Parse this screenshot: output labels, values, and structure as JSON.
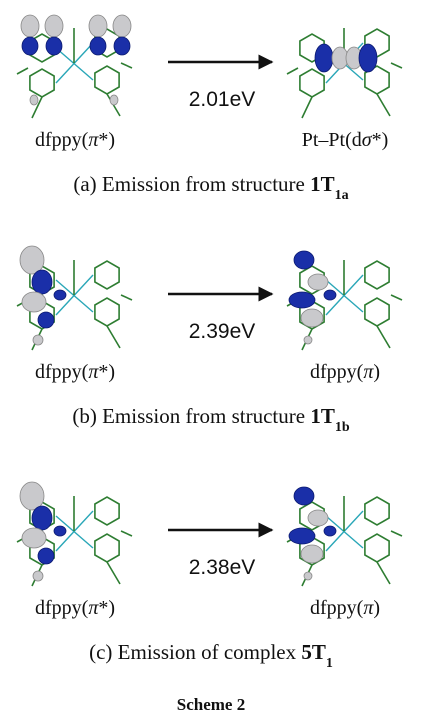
{
  "panels": [
    {
      "left_label": [
        "dfppy(",
        "π",
        "*)"
      ],
      "right_label": [
        "Pt–Pt(d",
        "σ",
        "*)"
      ],
      "energy": "2.01eV",
      "caption": [
        "(a)  Emission from structure ",
        "1T",
        "1a"
      ]
    },
    {
      "left_label": [
        "dfppy(",
        "π",
        "*)"
      ],
      "right_label": [
        "dfppy(",
        "π",
        ")"
      ],
      "energy": "2.39eV",
      "caption": [
        "(b)  Emission from structure ",
        "1T",
        "1b"
      ]
    },
    {
      "left_label": [
        "dfppy(",
        "π",
        "*)"
      ],
      "right_label": [
        "dfppy(",
        "π",
        ")"
      ],
      "energy": "2.38eV",
      "caption": [
        "(c)  Emission of complex ",
        "5T",
        "1"
      ]
    }
  ],
  "scheme_title": "Scheme 2"
}
